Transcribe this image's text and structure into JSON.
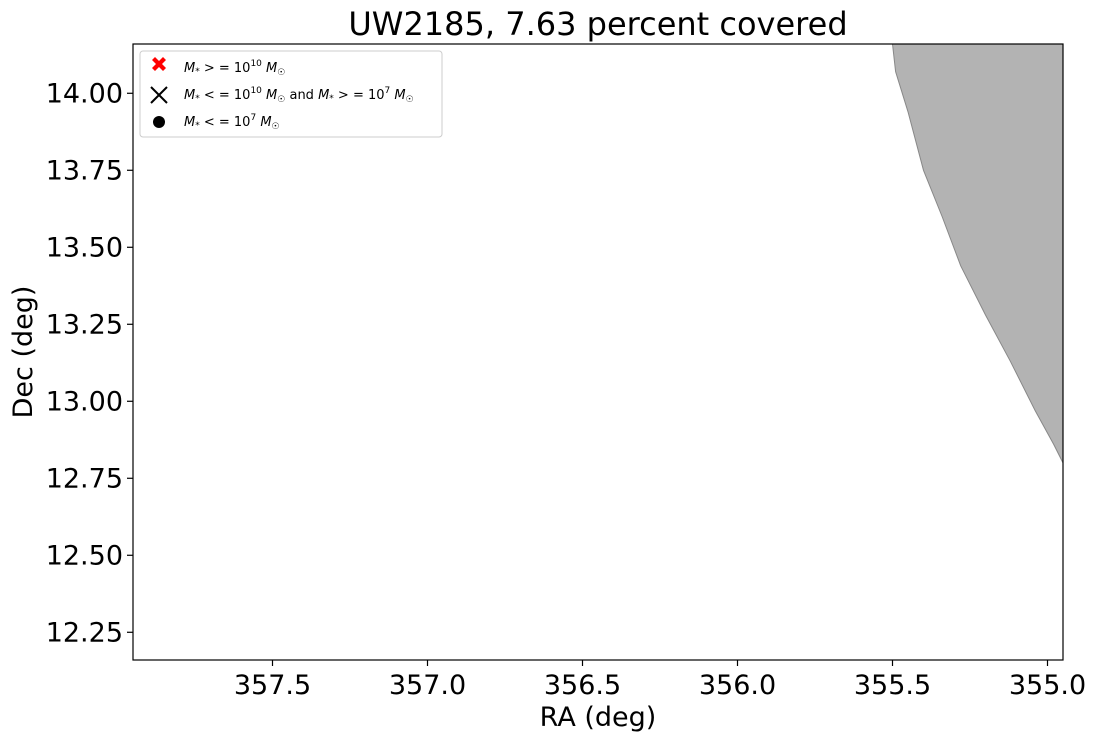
{
  "chart_data": {
    "type": "scatter",
    "title": "UW2185, 7.63 percent covered",
    "xlabel": "RA (deg)",
    "ylabel": "Dec (deg)",
    "xlim": [
      357.95,
      354.95
    ],
    "ylim": [
      12.16,
      14.16
    ],
    "x_inverted": true,
    "x_ticks": [
      357.5,
      357.0,
      356.5,
      356.0,
      355.5,
      355.0
    ],
    "x_tick_labels": [
      "357.5",
      "357.0",
      "356.5",
      "356.0",
      "355.5",
      "355.0"
    ],
    "y_ticks": [
      12.25,
      12.5,
      12.75,
      13.0,
      13.25,
      13.5,
      13.75,
      14.0
    ],
    "y_tick_labels": [
      "12.25",
      "12.50",
      "12.75",
      "13.00",
      "13.25",
      "13.50",
      "13.75",
      "14.00"
    ],
    "grid": false,
    "legend_position": "upper-left",
    "legend": [
      {
        "marker": "red-filled-x",
        "color": "#ff0000",
        "label": "M* >= 10^10 M☉"
      },
      {
        "marker": "black-x",
        "color": "#000000",
        "label": "M* <= 10^10 M☉ and M* >= 10^7 M☉"
      },
      {
        "marker": "black-dot",
        "color": "#000000",
        "label": "M* <= 10^7 M☉"
      }
    ],
    "series": [],
    "coverage_region": {
      "color": "#b3b3b3",
      "edge_color": "#888888",
      "boundary": [
        [
          355.5,
          14.16
        ],
        [
          355.49,
          14.07
        ],
        [
          355.45,
          13.94
        ],
        [
          355.4,
          13.75
        ],
        [
          355.34,
          13.6
        ],
        [
          355.28,
          13.44
        ],
        [
          355.2,
          13.28
        ],
        [
          355.12,
          13.13
        ],
        [
          355.04,
          12.97
        ],
        [
          354.98,
          12.86
        ],
        [
          354.95,
          12.8
        ]
      ]
    }
  }
}
